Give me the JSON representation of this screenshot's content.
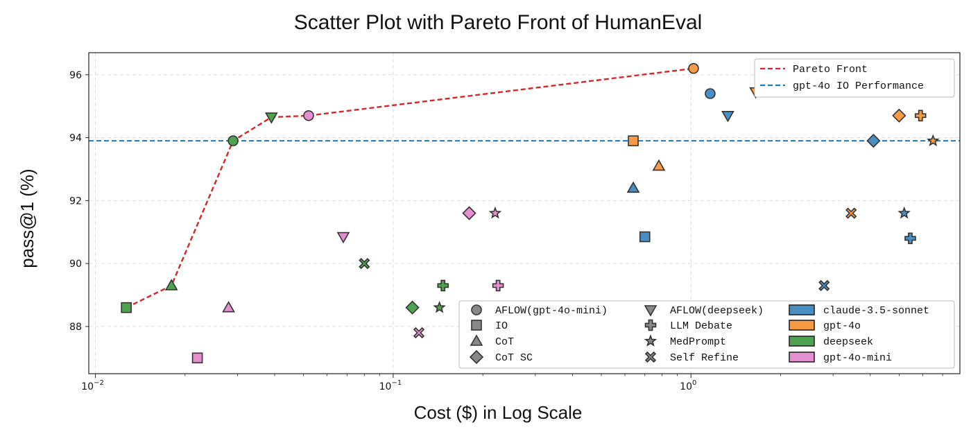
{
  "chart_data": {
    "type": "scatter",
    "title": "Scatter Plot with Pareto Front of HumanEval",
    "xlabel": "Cost ($) in Log Scale",
    "ylabel": "pass@1 (%)",
    "xscale": "log",
    "xlim": [
      0.0095,
      8.0
    ],
    "ylim": [
      86.5,
      96.7
    ],
    "grid": true,
    "xticks": [
      {
        "value": 0.01,
        "base": "10",
        "exp": "−2"
      },
      {
        "value": 0.1,
        "base": "10",
        "exp": "−1"
      },
      {
        "value": 1,
        "base": "10",
        "exp": "0"
      }
    ],
    "yticks": [
      88,
      90,
      92,
      94,
      96
    ],
    "colors": {
      "claude-3.5-sonnet": "#4a8fc4",
      "gpt-4o": "#f59a45",
      "deepseek": "#4fa24f",
      "gpt-4o-mini": "#e48fd0",
      "pareto": "#d62728",
      "baseline": "#1f77b4"
    },
    "points": [
      {
        "model": "gpt-4o-mini",
        "method": "AFLOW(gpt-4o-mini)",
        "x": 0.052,
        "y": 94.7
      },
      {
        "model": "gpt-4o-mini",
        "method": "IO",
        "x": 0.022,
        "y": 87.0
      },
      {
        "model": "gpt-4o-mini",
        "method": "CoT",
        "x": 0.028,
        "y": 88.6
      },
      {
        "model": "gpt-4o-mini",
        "method": "CoT SC",
        "x": 0.18,
        "y": 91.6
      },
      {
        "model": "gpt-4o-mini",
        "method": "AFLOW(deepseek)",
        "x": 0.068,
        "y": 90.85
      },
      {
        "model": "gpt-4o-mini",
        "method": "LLM Debate",
        "x": 0.225,
        "y": 89.3
      },
      {
        "model": "gpt-4o-mini",
        "method": "MedPrompt",
        "x": 0.22,
        "y": 91.6
      },
      {
        "model": "gpt-4o-mini",
        "method": "Self Refine",
        "x": 0.122,
        "y": 87.8
      },
      {
        "model": "deepseek",
        "method": "AFLOW(gpt-4o-mini)",
        "x": 0.029,
        "y": 93.9
      },
      {
        "model": "deepseek",
        "method": "IO",
        "x": 0.0127,
        "y": 88.6
      },
      {
        "model": "deepseek",
        "method": "CoT",
        "x": 0.018,
        "y": 89.3
      },
      {
        "model": "deepseek",
        "method": "CoT SC",
        "x": 0.116,
        "y": 88.6
      },
      {
        "model": "deepseek",
        "method": "AFLOW(deepseek)",
        "x": 0.039,
        "y": 94.65
      },
      {
        "model": "deepseek",
        "method": "LLM Debate",
        "x": 0.147,
        "y": 89.3
      },
      {
        "model": "deepseek",
        "method": "MedPrompt",
        "x": 0.143,
        "y": 88.6
      },
      {
        "model": "deepseek",
        "method": "Self Refine",
        "x": 0.08,
        "y": 90.0
      },
      {
        "model": "gpt-4o",
        "method": "AFLOW(gpt-4o-mini)",
        "x": 1.02,
        "y": 96.2
      },
      {
        "model": "gpt-4o",
        "method": "IO",
        "x": 0.64,
        "y": 93.9
      },
      {
        "model": "gpt-4o",
        "method": "CoT",
        "x": 0.78,
        "y": 93.1
      },
      {
        "model": "gpt-4o",
        "method": "CoT SC",
        "x": 5.0,
        "y": 94.7
      },
      {
        "model": "gpt-4o",
        "method": "AFLOW(deepseek)",
        "x": 1.65,
        "y": 95.45
      },
      {
        "model": "gpt-4o",
        "method": "LLM Debate",
        "x": 5.9,
        "y": 94.7
      },
      {
        "model": "gpt-4o",
        "method": "MedPrompt",
        "x": 6.5,
        "y": 93.9
      },
      {
        "model": "gpt-4o",
        "method": "Self Refine",
        "x": 3.45,
        "y": 91.6
      },
      {
        "model": "claude-3.5-sonnet",
        "method": "AFLOW(gpt-4o-mini)",
        "x": 1.16,
        "y": 95.4
      },
      {
        "model": "claude-3.5-sonnet",
        "method": "IO",
        "x": 0.7,
        "y": 90.85
      },
      {
        "model": "claude-3.5-sonnet",
        "method": "CoT",
        "x": 0.64,
        "y": 92.4
      },
      {
        "model": "claude-3.5-sonnet",
        "method": "CoT SC",
        "x": 4.1,
        "y": 93.9
      },
      {
        "model": "claude-3.5-sonnet",
        "method": "AFLOW(deepseek)",
        "x": 1.33,
        "y": 94.7
      },
      {
        "model": "claude-3.5-sonnet",
        "method": "LLM Debate",
        "x": 5.45,
        "y": 90.8
      },
      {
        "model": "claude-3.5-sonnet",
        "method": "MedPrompt",
        "x": 5.2,
        "y": 91.6
      },
      {
        "model": "claude-3.5-sonnet",
        "method": "Self Refine",
        "x": 2.8,
        "y": 89.3
      }
    ],
    "pareto_front": [
      {
        "x": 0.0127,
        "y": 88.6
      },
      {
        "x": 0.018,
        "y": 89.3
      },
      {
        "x": 0.029,
        "y": 93.9
      },
      {
        "x": 0.039,
        "y": 94.65
      },
      {
        "x": 0.052,
        "y": 94.7
      },
      {
        "x": 1.02,
        "y": 96.2
      }
    ],
    "baseline": {
      "y": 93.9
    },
    "legend_top": {
      "placement": "top-right",
      "entries": [
        {
          "label": "Pareto Front",
          "style": "pareto"
        },
        {
          "label": "gpt-4o IO Performance",
          "style": "baseline"
        }
      ]
    },
    "legend_bottom": {
      "placement": "lower-right",
      "methods": [
        {
          "label": "AFLOW(gpt-4o-mini)",
          "shape": "circle"
        },
        {
          "label": "IO",
          "shape": "square"
        },
        {
          "label": "CoT",
          "shape": "triangle-up"
        },
        {
          "label": "CoT SC",
          "shape": "diamond"
        },
        {
          "label": "AFLOW(deepseek)",
          "shape": "triangle-down"
        },
        {
          "label": "LLM Debate",
          "shape": "plus"
        },
        {
          "label": "MedPrompt",
          "shape": "star"
        },
        {
          "label": "Self Refine",
          "shape": "x"
        }
      ],
      "models": [
        {
          "label": "claude-3.5-sonnet",
          "color": "#4a8fc4"
        },
        {
          "label": "gpt-4o",
          "color": "#f59a45"
        },
        {
          "label": "deepseek",
          "color": "#4fa24f"
        },
        {
          "label": "gpt-4o-mini",
          "color": "#e48fd0"
        }
      ]
    }
  }
}
